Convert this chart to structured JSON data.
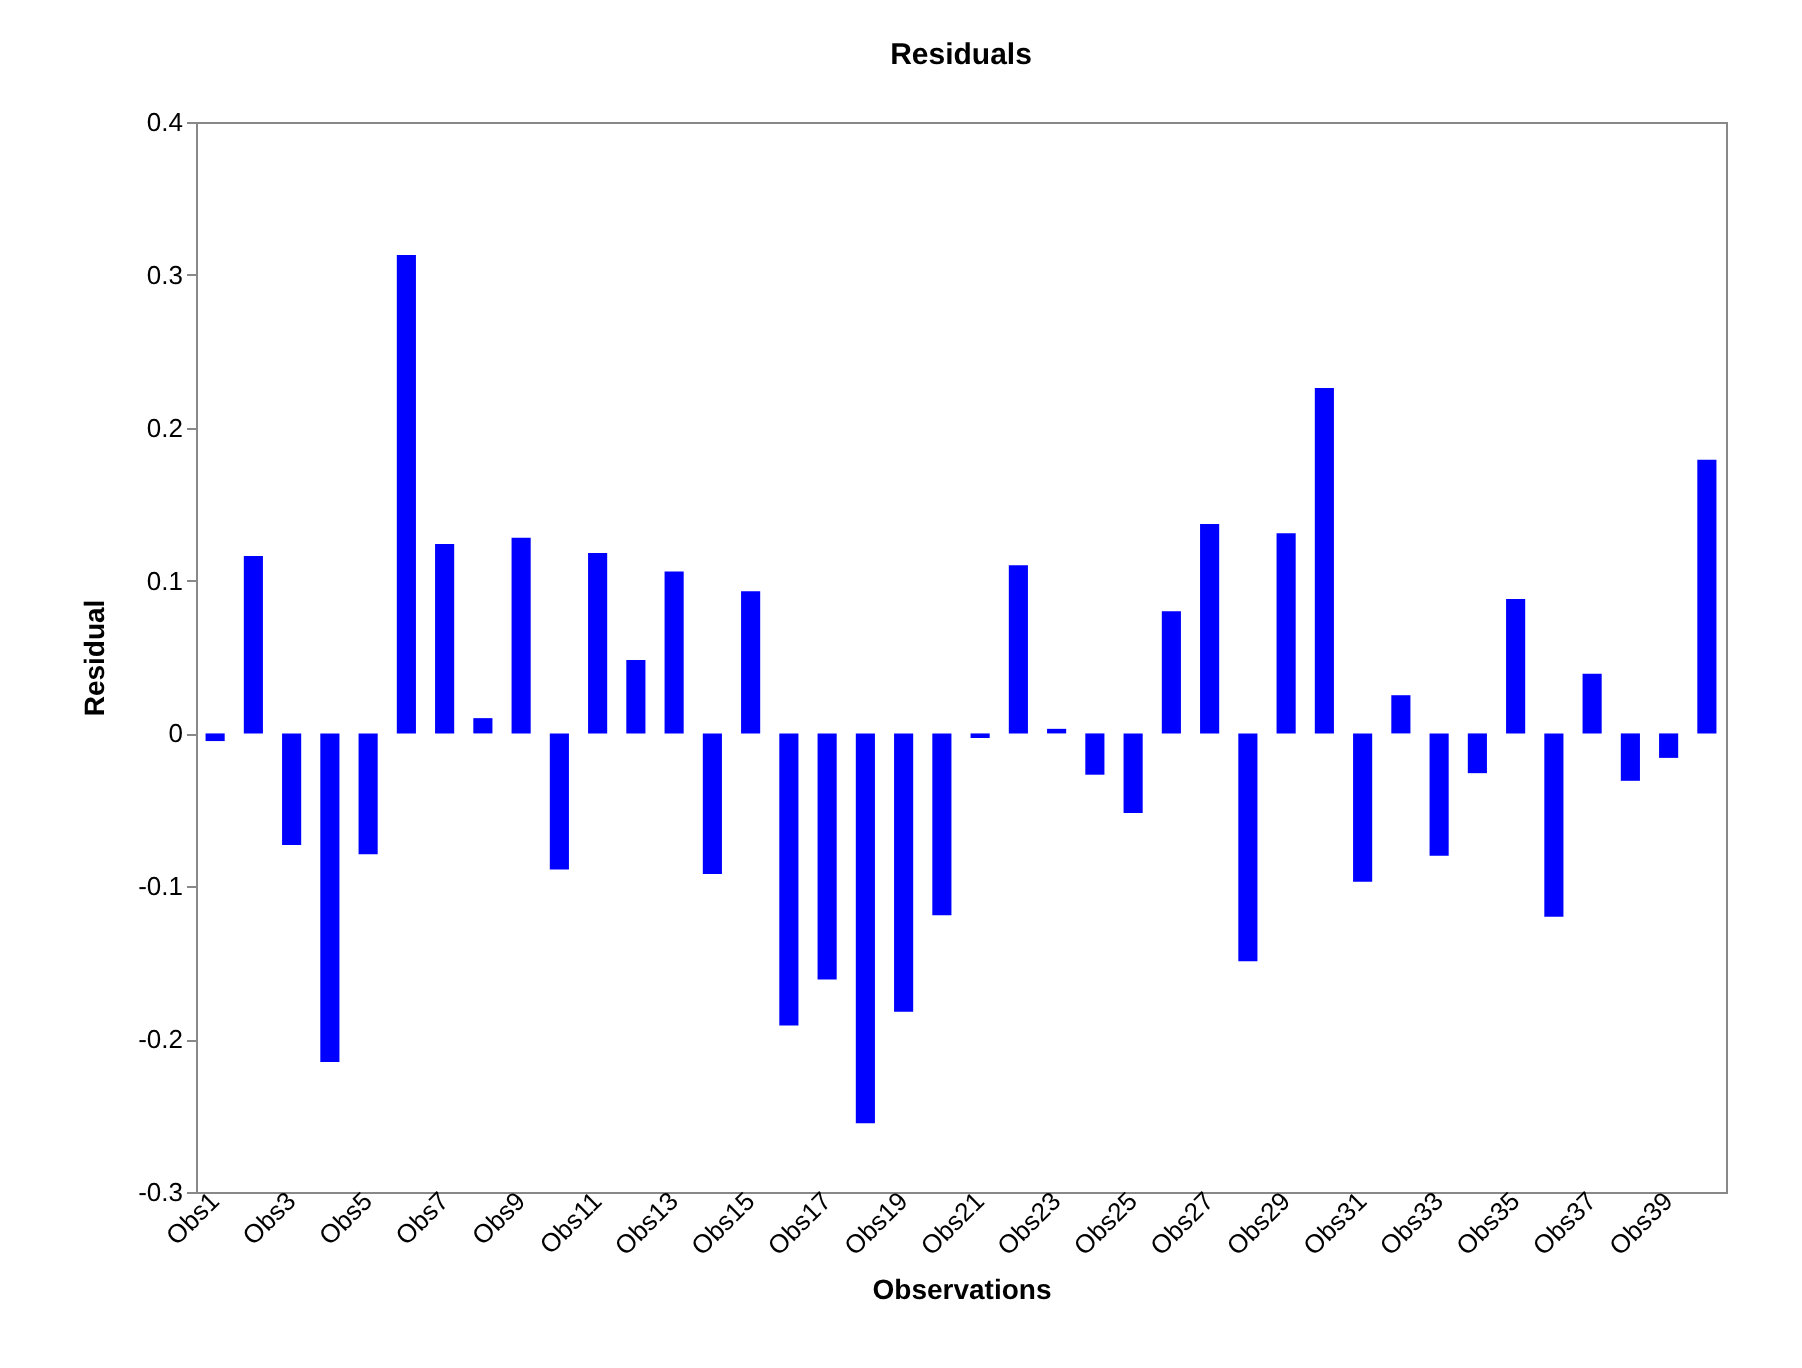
{
  "chart_data": {
    "type": "bar",
    "title": "Residuals",
    "xlabel": "Observations",
    "ylabel": "Residual",
    "categories": [
      "Obs1",
      null,
      "Obs3",
      null,
      "Obs5",
      null,
      "Obs7",
      null,
      "Obs9",
      null,
      "Obs11",
      null,
      "Obs13",
      null,
      "Obs15",
      null,
      "Obs17",
      null,
      "Obs19",
      null,
      "Obs21",
      null,
      "Obs23",
      null,
      "Obs25",
      null,
      "Obs27",
      null,
      "Obs29",
      null,
      "Obs31",
      null,
      "Obs33",
      null,
      "Obs35",
      null,
      "Obs37",
      null,
      "Obs39",
      null
    ],
    "values": [
      -0.005,
      0.116,
      -0.073,
      -0.215,
      -0.079,
      0.313,
      0.124,
      0.01,
      0.128,
      -0.089,
      0.118,
      0.048,
      0.106,
      -0.092,
      0.093,
      -0.191,
      -0.161,
      -0.255,
      -0.182,
      -0.119,
      -0.003,
      0.11,
      0.003,
      -0.027,
      -0.052,
      0.08,
      0.137,
      -0.149,
      0.131,
      0.226,
      -0.097,
      0.025,
      -0.08,
      -0.026,
      0.088,
      -0.12,
      0.039,
      -0.031,
      -0.016,
      0.179
    ],
    "color": "#0000ff",
    "ylim": [
      -0.3,
      0.4
    ],
    "yticks": [
      -0.3,
      -0.2,
      -0.1,
      0,
      0.1,
      0.2,
      0.3,
      0.4
    ],
    "grid": false
  }
}
